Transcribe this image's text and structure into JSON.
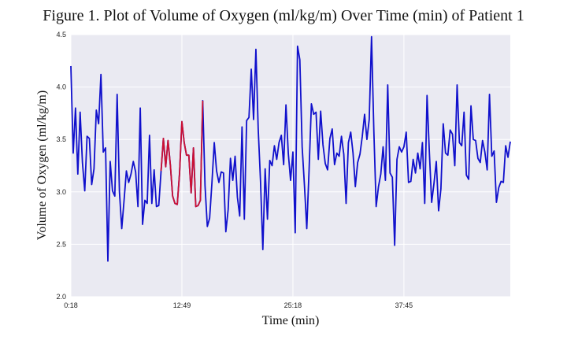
{
  "chart_data": {
    "type": "line",
    "title": "Figure 1. Plot of Volume of Oxygen (ml/kg/m) Over Time (min) of Patient 1",
    "xlabel": "Time (min)",
    "ylabel": "Volume of Oxygen (ml/kg/m)",
    "ylim": [
      2.0,
      4.5
    ],
    "yticks": [
      "2.0",
      "2.5",
      "3.0",
      "3.5",
      "4.0",
      "4.5"
    ],
    "x_tick_labels": [
      "0:18",
      "12:49",
      "25:18",
      "37:45"
    ],
    "x_tick_index": [
      0,
      48,
      96,
      144
    ],
    "grid": true,
    "background": "#eaeaf2",
    "series": [
      {
        "color": "#1010cc",
        "values": [
          4.2,
          3.37,
          3.8,
          3.17,
          3.76,
          3.28,
          3.01,
          3.53,
          3.51,
          3.07,
          3.22,
          3.78,
          3.65,
          4.12,
          3.38,
          3.42,
          2.34,
          3.29,
          3.01,
          2.96,
          3.93,
          3.0,
          2.65,
          2.92,
          3.2,
          3.09,
          3.17,
          3.29,
          3.19,
          2.86,
          3.8,
          2.69,
          2.92,
          2.89,
          3.54,
          2.89,
          3.21,
          2.86,
          2.87,
          3.2,
          3.51,
          3.24,
          3.49,
          3.26,
          2.96,
          2.89,
          2.88,
          3.18,
          3.67,
          3.47,
          3.35,
          3.35,
          2.99,
          3.42,
          2.86,
          2.87,
          2.92,
          3.87,
          3.06,
          2.67,
          2.75,
          3.09,
          3.47,
          3.2,
          3.09,
          3.19,
          3.18,
          2.62,
          2.83,
          3.32,
          3.11,
          3.34,
          2.95,
          2.77,
          3.62,
          2.74,
          3.68,
          3.71,
          4.17,
          3.69,
          4.36,
          3.6,
          3.1,
          2.45,
          3.22,
          2.74,
          3.3,
          3.25,
          3.44,
          3.31,
          3.47,
          3.54,
          3.26,
          3.83,
          3.37,
          3.11,
          3.38,
          2.61,
          4.39,
          4.26,
          3.43,
          3.06,
          2.65,
          3.21,
          3.84,
          3.74,
          3.76,
          3.31,
          3.77,
          3.45,
          3.27,
          3.21,
          3.51,
          3.6,
          3.26,
          3.37,
          3.34,
          3.53,
          3.36,
          2.89,
          3.47,
          3.57,
          3.37,
          3.05,
          3.28,
          3.36,
          3.53,
          3.74,
          3.5,
          3.69,
          4.48,
          3.58,
          2.86,
          3.05,
          3.17,
          3.43,
          3.11,
          4.02,
          3.18,
          3.14,
          2.49,
          3.31,
          3.43,
          3.38,
          3.43,
          3.57,
          3.09,
          3.1,
          3.31,
          3.18,
          3.37,
          3.22,
          3.47,
          2.89,
          3.92,
          3.38,
          2.9,
          3.08,
          3.29,
          2.82,
          3.03,
          3.65,
          3.37,
          3.35,
          3.59,
          3.55,
          3.25,
          4.02,
          3.47,
          3.44,
          3.76,
          3.16,
          3.12,
          3.82,
          3.5,
          3.49,
          3.32,
          3.28,
          3.49,
          3.38,
          3.21,
          3.93,
          3.34,
          3.39,
          2.9,
          3.04,
          3.1,
          3.09,
          3.44,
          3.33,
          3.48
        ]
      },
      {
        "color": "#cc1133",
        "start_index": 39,
        "values": [
          3.2,
          3.51,
          3.24,
          3.49,
          3.26,
          2.96,
          2.89,
          2.88,
          3.18,
          3.67,
          3.47,
          3.35,
          3.35,
          2.99,
          3.42,
          2.86,
          2.87,
          2.92,
          3.87
        ]
      }
    ]
  }
}
